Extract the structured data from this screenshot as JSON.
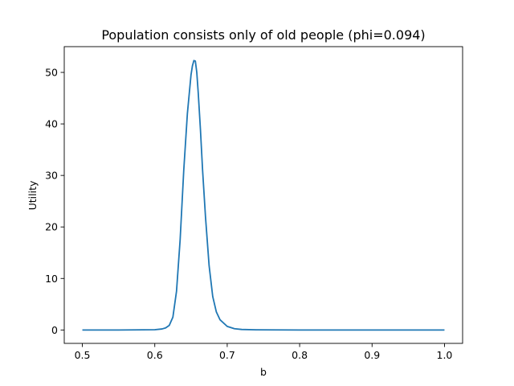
{
  "chart_data": {
    "type": "line",
    "title": "Population consists only of old people (phi=0.094)",
    "xlabel": "b",
    "ylabel": "Utility",
    "xlim": [
      0.475,
      1.025
    ],
    "ylim": [
      -2.6,
      55.0
    ],
    "xticks": [
      0.5,
      0.6,
      0.7,
      0.8,
      0.9,
      1.0
    ],
    "xtick_labels": [
      "0.5",
      "0.6",
      "0.7",
      "0.8",
      "0.9",
      "1.0"
    ],
    "yticks": [
      0,
      10,
      20,
      30,
      40,
      50
    ],
    "ytick_labels": [
      "0",
      "10",
      "20",
      "30",
      "40",
      "50"
    ],
    "grid": false,
    "series": [
      {
        "color": "#1f77b4",
        "x": [
          0.5,
          0.55,
          0.6,
          0.61,
          0.615,
          0.62,
          0.625,
          0.63,
          0.635,
          0.64,
          0.645,
          0.65,
          0.652,
          0.654,
          0.656,
          0.658,
          0.66,
          0.663,
          0.666,
          0.67,
          0.675,
          0.68,
          0.685,
          0.69,
          0.7,
          0.71,
          0.72,
          0.74,
          0.8,
          0.9,
          1.0
        ],
        "y": [
          0,
          0,
          0.05,
          0.2,
          0.4,
          0.9,
          2.5,
          7.5,
          17.5,
          31.0,
          42.0,
          49.5,
          51.3,
          52.3,
          52.2,
          50.0,
          46.0,
          39.0,
          31.0,
          22.0,
          12.5,
          6.5,
          3.5,
          2.0,
          0.7,
          0.25,
          0.1,
          0.03,
          0,
          0,
          0
        ]
      }
    ]
  }
}
